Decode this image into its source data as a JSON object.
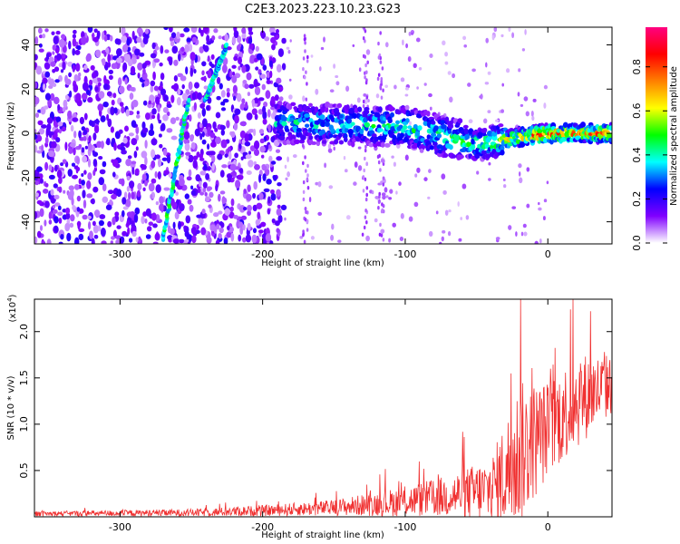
{
  "title": "C2E3.2023.223.10.23.G23",
  "chart_data": [
    {
      "type": "heatmap",
      "xlabel": "Height of straight line (km)",
      "ylabel": "Frequency (Hz)",
      "xlim": [
        -360,
        45
      ],
      "ylim": [
        -50,
        48
      ],
      "x_ticks": [
        -300,
        -200,
        -100,
        0
      ],
      "x_tick_labels": [
        "-300",
        "-200",
        "-100",
        "0"
      ],
      "y_ticks": [
        40,
        20,
        0,
        -20,
        -40
      ],
      "y_tick_labels": [
        "40",
        "20",
        "0",
        "-20",
        "-40"
      ],
      "colorbar": {
        "label": "Normalized spectral amplitude",
        "range": [
          0.0,
          0.98
        ],
        "ticks": [
          0.0,
          0.2,
          0.4,
          0.6,
          0.8
        ],
        "tick_labels": [
          "0.0",
          "0.2",
          "0.4",
          "0.6",
          "0.8"
        ],
        "colormap": [
          "#ffffff",
          "#8000ff",
          "#0000ff",
          "#00ffff",
          "#00ff00",
          "#ffff00",
          "#ff8000",
          "#ff0000",
          "#ff0080"
        ]
      },
      "features": [
        {
          "name": "background noise",
          "x_range": [
            -360,
            -185
          ],
          "amplitude": 0.15
        },
        {
          "name": "diagonal streak",
          "x": [
            -270,
            -252
          ],
          "y": [
            -48,
            15
          ],
          "amplitude": 0.4
        },
        {
          "name": "diagonal streak",
          "x": [
            -240,
            -225
          ],
          "y": [
            15,
            40
          ],
          "amplitude": 0.35
        },
        {
          "name": "main band",
          "x": [
            -190,
            -100,
            -50,
            0,
            45
          ],
          "y": [
            5,
            3,
            -5,
            0,
            0
          ],
          "amplitude": [
            0.4,
            0.45,
            0.5,
            0.85,
            0.8
          ]
        }
      ]
    },
    {
      "type": "line",
      "xlabel": "Height of straight line (km)",
      "ylabel": "SNR (10 * v/v)",
      "scale_label": "(x10",
      "scale_exp": "4",
      "scale_close": ")",
      "xlim": [
        -360,
        45
      ],
      "ylim": [
        0,
        23500
      ],
      "x_ticks": [
        -300,
        -200,
        -100,
        0
      ],
      "x_tick_labels": [
        "-300",
        "-200",
        "-100",
        "0"
      ],
      "y_ticks": [
        5000,
        10000,
        15000,
        20000
      ],
      "y_tick_labels": [
        "0.5",
        "1.0",
        "1.5",
        "2.0"
      ],
      "line_color": "#f03030",
      "envelope": [
        {
          "x": -360,
          "base": 300,
          "amp": 400
        },
        {
          "x": -250,
          "base": 400,
          "amp": 600
        },
        {
          "x": -200,
          "base": 600,
          "amp": 900
        },
        {
          "x": -150,
          "base": 900,
          "amp": 1300
        },
        {
          "x": -100,
          "base": 1500,
          "amp": 2500
        },
        {
          "x": -70,
          "base": 2000,
          "amp": 3500
        },
        {
          "x": -40,
          "base": 2500,
          "amp": 5500
        },
        {
          "x": -30,
          "base": 4000,
          "amp": 9000
        },
        {
          "x": -20,
          "base": 6000,
          "amp": 12000
        },
        {
          "x": 0,
          "base": 9000,
          "amp": 8000
        },
        {
          "x": 20,
          "base": 12000,
          "amp": 8000
        },
        {
          "x": 45,
          "base": 14000,
          "amp": 5000
        }
      ],
      "peaks": [
        {
          "x": -19,
          "y": 23500
        },
        {
          "x": 30,
          "y": 22200
        },
        {
          "x": 16,
          "y": 22400
        },
        {
          "x": 2,
          "y": 16000
        }
      ]
    }
  ]
}
